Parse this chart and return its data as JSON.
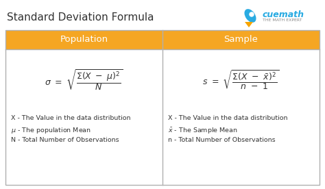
{
  "title": "Standard Deviation Formula",
  "title_color": "#333333",
  "title_fontsize": 11,
  "background_color": "#ffffff",
  "header_bg_color": "#F5A623",
  "header_text_color": "#ffffff",
  "header_fontsize": 9.5,
  "cell_bg_color": "#ffffff",
  "col_headers": [
    "Population",
    "Sample"
  ],
  "pop_formula": "$\\sigma\\ =\\ \\sqrt{\\dfrac{\\Sigma(X\\ -\\ \\mu)^2}{N}}$",
  "sample_formula": "$s\\ =\\ \\sqrt{\\dfrac{\\Sigma(X\\ -\\ \\bar{x})^2}{n\\ -\\ 1}}$",
  "pop_notes": [
    "X - The Value in the data distribution",
    "$\\mu$ - The population Mean",
    "N - Total Number of Observations"
  ],
  "sample_notes": [
    "X - The Value in the data distribution",
    "$\\bar{x}$ - The Sample Mean",
    "n - Total Number of Observations"
  ],
  "notes_fontsize": 6.8,
  "formula_fontsize": 9,
  "border_color": "#b0b0b0",
  "cuemath_blue": "#29ABE2",
  "cuemath_orange": "#F7A400",
  "cuemath_gray": "#888888"
}
